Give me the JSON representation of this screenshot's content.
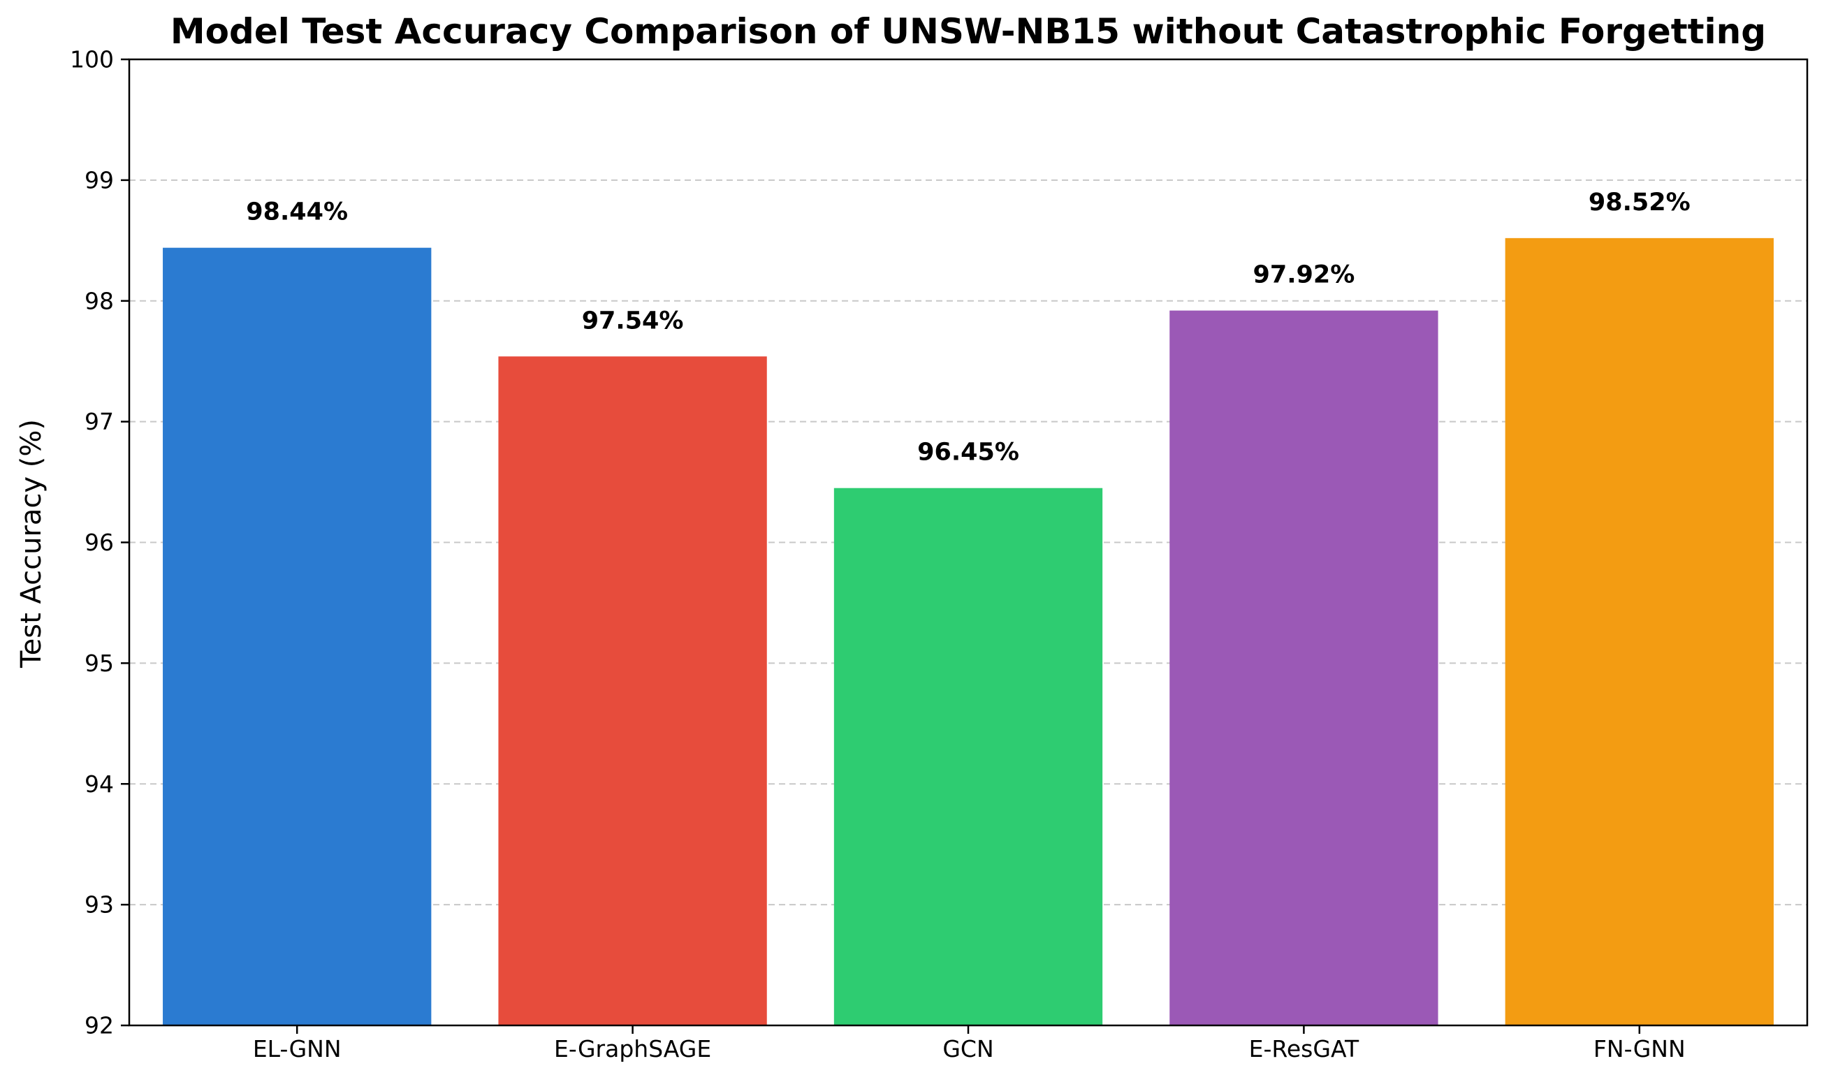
{
  "chart_data": {
    "type": "bar",
    "title": "Model Test Accuracy Comparison of UNSW-NB15 without Catastrophic Forgetting",
    "xlabel": "",
    "ylabel": "Test Accuracy (%)",
    "ylim": [
      92,
      100
    ],
    "yticks": [
      "92",
      "93",
      "94",
      "95",
      "96",
      "97",
      "98",
      "99",
      "100"
    ],
    "grid": "horizontal-dashed",
    "categories": [
      "EL-GNN",
      "E-GraphSAGE",
      "GCN",
      "E-ResGAT",
      "FN-GNN"
    ],
    "values": [
      98.44,
      97.54,
      96.45,
      97.92,
      98.52
    ],
    "value_labels": [
      "98.44%",
      "97.54%",
      "96.45%",
      "97.92%",
      "98.52%"
    ],
    "colors": [
      "#2b7bd1",
      "#e74c3c",
      "#2ecc71",
      "#9b59b6",
      "#f39c12"
    ]
  }
}
